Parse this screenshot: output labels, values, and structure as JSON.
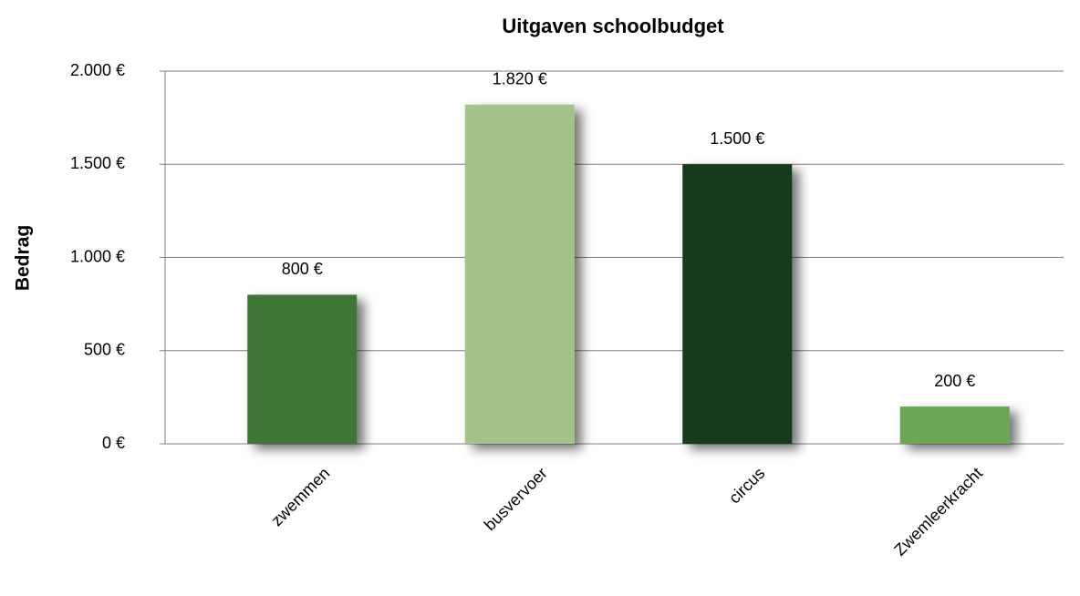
{
  "chart_data": {
    "type": "bar",
    "title": "Uitgaven schoolbudget",
    "y_label": "Bedrag",
    "categories": [
      "zwemmen",
      "busvervoer",
      "circus",
      "Zwemleerkracht"
    ],
    "values": [
      800,
      1820,
      1500,
      200
    ],
    "value_labels": [
      "800 €",
      "1.820 €",
      "1.500 €",
      "200 €"
    ],
    "colors": [
      "#3f7539",
      "#a3c38a",
      "#173b1c",
      "#6aa655"
    ],
    "ylim": [
      0,
      2000
    ],
    "yticks": [
      {
        "value": 0,
        "label": "0 €"
      },
      {
        "value": 500,
        "label": "500 €"
      },
      {
        "value": 1000,
        "label": "1.000 €"
      },
      {
        "value": 1500,
        "label": "1.500 €"
      },
      {
        "value": 2000,
        "label": "2.000 €"
      }
    ],
    "grid": true
  }
}
